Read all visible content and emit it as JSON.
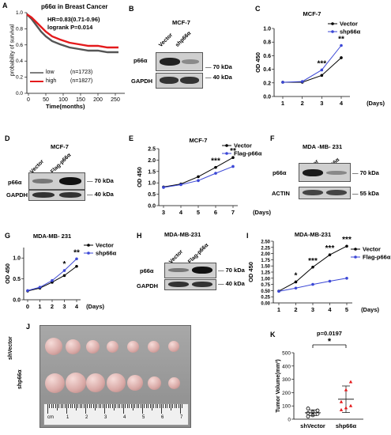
{
  "panels": {
    "A": "A",
    "B": "B",
    "C": "C",
    "D": "D",
    "E": "E",
    "F": "F",
    "G": "G",
    "H": "H",
    "I": "I",
    "J": "J",
    "K": "K"
  },
  "km": {
    "title": "p66α in Breast Cancer",
    "hr": "HR=0.83(0.71-0.96)",
    "logrank": "logrank P=0.014",
    "ylabel": "probability of survival",
    "xlabel": "Time(months)",
    "xticks": [
      "0",
      "50",
      "100",
      "150",
      "200",
      "250"
    ],
    "yticks": [
      "0.0",
      "0.2",
      "0.4",
      "0.6",
      "0.8",
      "1.0"
    ],
    "legend": [
      {
        "name": "low",
        "n": "(n=1723)",
        "color": "#7f7f7f"
      },
      {
        "name": "high",
        "n": "(n=1827)",
        "color": "#e41a1c"
      }
    ]
  },
  "blots": {
    "B": {
      "cell": "MCF-7",
      "lanes": [
        "Vector",
        "shp66α"
      ],
      "rows": [
        "p66α",
        "GAPDH"
      ],
      "markers": [
        "70 kDa",
        "40 kDa"
      ]
    },
    "D": {
      "cell": "MCF-7",
      "lanes": [
        "Vector",
        "Flag-p66α"
      ],
      "rows": [
        "p66α",
        "GAPDH"
      ],
      "markers": [
        "70 kDa",
        "40 kDa"
      ]
    },
    "F": {
      "cell": "MDA -MB- 231",
      "lanes": [
        "Vector",
        "shp66α"
      ],
      "rows": [
        "p66α",
        "ACTIN"
      ],
      "markers": [
        "70 kDa",
        "55 kDa"
      ]
    },
    "H": {
      "cell": "MDA-MB-231",
      "lanes": [
        "Vector",
        "Flag-p66α"
      ],
      "rows": [
        "p66α",
        "GAPDH"
      ],
      "markers": [
        "70 kDa",
        "40 kDa"
      ]
    }
  },
  "chart_data": [
    {
      "panel": "C",
      "type": "line",
      "title": "MCF-7",
      "xlabel": "(Days)",
      "ylabel": "OD 450",
      "x": [
        1,
        2,
        3,
        4
      ],
      "ylim": [
        0,
        1.0
      ],
      "yticks": [
        "0.0",
        "0.2",
        "0.4",
        "0.6",
        "0.8",
        "1.0"
      ],
      "series": [
        {
          "name": "Vector",
          "color": "#000000",
          "values": [
            0.21,
            0.21,
            0.31,
            0.57
          ]
        },
        {
          "name": "shp66α",
          "color": "#3b47d6",
          "values": [
            0.21,
            0.22,
            0.39,
            0.75
          ]
        }
      ],
      "annotations": [
        {
          "x": 3,
          "text": "***"
        },
        {
          "x": 4,
          "text": "**"
        }
      ]
    },
    {
      "panel": "E",
      "type": "line",
      "title": "MCF-7",
      "xlabel": "(Days)",
      "ylabel": "OD 450",
      "x": [
        3,
        4,
        5,
        6,
        7
      ],
      "ylim": [
        0,
        2.5
      ],
      "yticks": [
        "0.0",
        "0.5",
        "1.0",
        "1.5",
        "2.0",
        "2.5"
      ],
      "series": [
        {
          "name": "Vector",
          "color": "#000000",
          "values": [
            0.82,
            0.95,
            1.27,
            1.68,
            2.11
          ]
        },
        {
          "name": "Flag-p66α",
          "color": "#3b47d6",
          "values": [
            0.8,
            0.92,
            1.1,
            1.42,
            1.72
          ]
        }
      ],
      "annotations": [
        {
          "x": 6,
          "text": "***"
        },
        {
          "x": 7,
          "text": "**"
        }
      ]
    },
    {
      "panel": "G",
      "type": "line",
      "title": "MDA-MB- 231",
      "xlabel": "(Days)",
      "ylabel": "OD 450",
      "x": [
        0,
        1,
        2,
        3,
        4
      ],
      "ylim": [
        0,
        1.25
      ],
      "yticks": [
        "0.0",
        "0.5",
        "1.0"
      ],
      "series": [
        {
          "name": "Vector",
          "color": "#000000",
          "values": [
            0.21,
            0.28,
            0.42,
            0.58,
            0.8
          ]
        },
        {
          "name": "shp66α",
          "color": "#3b47d6",
          "values": [
            0.22,
            0.3,
            0.46,
            0.7,
            0.98
          ]
        }
      ],
      "annotations": [
        {
          "x": 3,
          "text": "*"
        },
        {
          "x": 4,
          "text": "**"
        }
      ]
    },
    {
      "panel": "I",
      "type": "line",
      "title": "MDA-MB-231",
      "xlabel": "(Days)",
      "ylabel": "OD 450",
      "x": [
        1,
        2,
        3,
        4,
        5
      ],
      "ylim": [
        0,
        2.5
      ],
      "yticks": [
        "0.00",
        "0.25",
        "0.50",
        "0.75",
        "1.00",
        "1.25",
        "1.50",
        "1.75",
        "2.00",
        "2.25",
        "2.50"
      ],
      "series": [
        {
          "name": "Vector",
          "color": "#000000",
          "values": [
            0.48,
            0.85,
            1.45,
            1.95,
            2.3
          ]
        },
        {
          "name": "Flag-p66α",
          "color": "#3b47d6",
          "values": [
            0.47,
            0.6,
            0.75,
            0.88,
            1.0
          ]
        }
      ],
      "annotations": [
        {
          "x": 2,
          "text": "*"
        },
        {
          "x": 3,
          "text": "***"
        },
        {
          "x": 4,
          "text": "***"
        },
        {
          "x": 5,
          "text": "***"
        }
      ]
    },
    {
      "panel": "K",
      "type": "scatter",
      "ylabel": "Tumor Volume(mm³)",
      "categories": [
        "shVector",
        "shp66α"
      ],
      "ylim": [
        0,
        500
      ],
      "yticks": [
        "0",
        "100",
        "200",
        "300",
        "400",
        "500"
      ],
      "pvalue": "p=0.0197",
      "sig": "*",
      "series": [
        {
          "name": "shVector",
          "color": "#000000",
          "values": [
            20,
            30,
            40,
            45,
            55,
            65,
            80
          ],
          "mean": 48,
          "sd": 22
        },
        {
          "name": "shp66α",
          "color": "#e41a1c",
          "values": [
            70,
            85,
            100,
            130,
            220,
            280
          ],
          "mean": 150,
          "sd": 100
        }
      ]
    }
  ],
  "photo": {
    "row1": "shVector",
    "row2": "shp66α",
    "ruler": [
      "cm",
      "1",
      "2",
      "3",
      "4",
      "5",
      "6",
      "7"
    ]
  }
}
